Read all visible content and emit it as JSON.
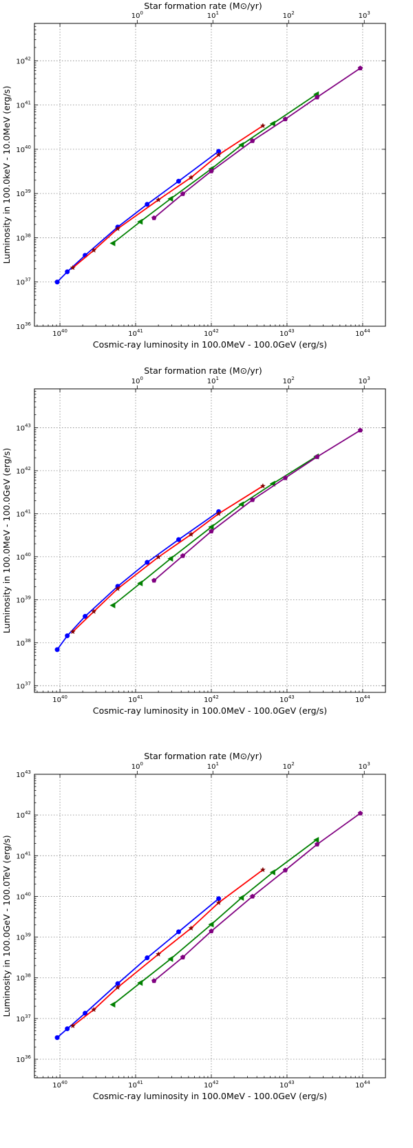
{
  "chart_data": [
    {
      "type": "line",
      "title": "",
      "xlabel": "Cosmic-ray luminosity in 100.0MeV - 100.0GeV (erg/s)",
      "ylabel": "Luminosity in 100.0keV -  10.0MeV (erg/s)",
      "top_xlabel": "Star formation rate (M⊙/yr)",
      "x_scale": "log",
      "y_scale": "log",
      "xlim": [
        4.6e+39,
        2e+44
      ],
      "ylim": [
        1e+36,
        7e+42
      ],
      "x_ticks": [
        "10^40",
        "10^41",
        "10^42",
        "10^43",
        "10^44"
      ],
      "y_ticks": [
        "10^36",
        "10^37",
        "10^38",
        "10^39",
        "10^40",
        "10^41",
        "10^42"
      ],
      "top_ticks": [
        "10^0",
        "10^1",
        "10^2",
        "10^3"
      ],
      "top_tick_positions": [
        1.05e+41,
        1.05e+42,
        1.05e+43,
        1.05e+44
      ],
      "grid": true,
      "series": [
        {
          "color": "#0000ff",
          "marker": "circle",
          "x": [
            9.2e+39,
            1.25e+40,
            2.15e+40,
            5.8e+40,
            1.42e+41,
            3.7e+41,
            1.25e+42
          ],
          "y": [
            1e+37,
            1.7e+37,
            4e+37,
            1.75e+38,
            5.7e+38,
            1.9e+39,
            9e+39
          ]
        },
        {
          "color": "#ff0000",
          "marker": "star",
          "x": [
            1.48e+40,
            2.8e+40,
            5.8e+40,
            2e+41,
            5.4e+41,
            1.25e+42,
            4.8e+42
          ],
          "y": [
            2.1e+37,
            5.2e+37,
            1.6e+38,
            7.2e+38,
            2.3e+39,
            7.5e+39,
            3.4e+40
          ]
        },
        {
          "color": "#008000",
          "marker": "triangle-left",
          "x": [
            5e+40,
            1.15e+41,
            2.9e+41,
            1e+42,
            2.5e+42,
            6.5e+42,
            2.45e+43
          ],
          "y": [
            7.5e+37,
            2.3e+38,
            7.6e+38,
            3.6e+39,
            1.25e+40,
            3.8e+40,
            1.75e+41
          ]
        },
        {
          "color": "#800080",
          "marker": "pentagon",
          "x": [
            1.75e+41,
            4.2e+41,
            1e+42,
            3.5e+42,
            9.5e+42,
            2.5e+43,
            9.3e+43
          ],
          "y": [
            2.8e+38,
            9.8e+38,
            3.2e+39,
            1.55e+40,
            4.8e+40,
            1.5e+41,
            6.8e+41
          ]
        }
      ]
    },
    {
      "type": "line",
      "title": "",
      "xlabel": "Cosmic-ray luminosity in 100.0MeV - 100.0GeV (erg/s)",
      "ylabel": "Luminosity in 100.0MeV - 100.0GeV (erg/s)",
      "top_xlabel": "Star formation rate (M⊙/yr)",
      "x_scale": "log",
      "y_scale": "log",
      "xlim": [
        4.6e+39,
        2e+44
      ],
      "ylim": [
        7e+36,
        8e+43
      ],
      "x_ticks": [
        "10^40",
        "10^41",
        "10^42",
        "10^43",
        "10^44"
      ],
      "y_ticks": [
        "10^37",
        "10^38",
        "10^39",
        "10^40",
        "10^41",
        "10^42",
        "10^43"
      ],
      "top_ticks": [
        "10^0",
        "10^1",
        "10^2",
        "10^3"
      ],
      "top_tick_positions": [
        1.05e+41,
        1.05e+42,
        1.05e+43,
        1.05e+44
      ],
      "grid": true,
      "series": [
        {
          "color": "#0000ff",
          "marker": "circle",
          "x": [
            9.2e+39,
            1.25e+40,
            2.15e+40,
            5.8e+40,
            1.42e+41,
            3.7e+41,
            1.25e+42
          ],
          "y": [
            6.9e+37,
            1.45e+38,
            4.1e+38,
            2.05e+39,
            7.4e+39,
            2.5e+40,
            1.12e+41
          ]
        },
        {
          "color": "#ff0000",
          "marker": "star",
          "x": [
            1.48e+40,
            2.8e+40,
            5.8e+40,
            2e+41,
            5.4e+41,
            1.25e+42,
            4.8e+42
          ],
          "y": [
            1.8e+38,
            5.3e+38,
            1.8e+39,
            9.8e+39,
            3.3e+40,
            1e+41,
            4.4e+41
          ]
        },
        {
          "color": "#008000",
          "marker": "triangle-left",
          "x": [
            5e+40,
            1.15e+41,
            2.9e+41,
            1e+42,
            2.5e+42,
            6.5e+42,
            2.45e+43
          ],
          "y": [
            7.4e+38,
            2.4e+39,
            9e+39,
            4.9e+40,
            1.65e+41,
            5e+41,
            2.15e+42
          ]
        },
        {
          "color": "#800080",
          "marker": "pentagon",
          "x": [
            1.75e+41,
            4.2e+41,
            1e+42,
            3.5e+42,
            9.5e+42,
            2.5e+43,
            9.3e+43
          ],
          "y": [
            2.8e+39,
            1.05e+40,
            3.9e+40,
            2.1e+41,
            6.8e+41,
            2.1e+42,
            8.7e+42
          ]
        }
      ]
    },
    {
      "type": "line",
      "title": "",
      "xlabel": "Cosmic-ray luminosity in 100.0MeV - 100.0GeV (erg/s)",
      "ylabel": "Luminosity in 100.0GeV - 100.0TeV (erg/s)",
      "top_xlabel": "Star formation rate (M⊙/yr)",
      "x_scale": "log",
      "y_scale": "log",
      "xlim": [
        4.6e+39,
        2e+44
      ],
      "ylim": [
        3.5e+35,
        1e+43
      ],
      "x_ticks": [
        "10^40",
        "10^41",
        "10^42",
        "10^43",
        "10^44"
      ],
      "y_ticks": [
        "10^36",
        "10^37",
        "10^38",
        "10^39",
        "10^40",
        "10^41",
        "10^42",
        "10^43"
      ],
      "top_ticks": [
        "10^0",
        "10^1",
        "10^2",
        "10^3"
      ],
      "top_tick_positions": [
        1.05e+41,
        1.05e+42,
        1.05e+43,
        1.05e+44
      ],
      "grid": true,
      "series": [
        {
          "color": "#0000ff",
          "marker": "circle",
          "x": [
            9.2e+39,
            1.25e+40,
            2.15e+40,
            5.8e+40,
            1.42e+41,
            3.7e+41,
            1.25e+42
          ],
          "y": [
            3.4e+36,
            5.6e+36,
            1.35e+37,
            7.2e+37,
            3.1e+38,
            1.35e+39,
            8.8e+39
          ]
        },
        {
          "color": "#ff0000",
          "marker": "star",
          "x": [
            1.48e+40,
            2.8e+40,
            5.8e+40,
            2e+41,
            5.4e+41,
            1.25e+42,
            4.8e+42
          ],
          "y": [
            6.6e+36,
            1.65e+37,
            5.8e+37,
            3.8e+38,
            1.65e+39,
            7e+39,
            4.5e+40
          ]
        },
        {
          "color": "#008000",
          "marker": "triangle-left",
          "x": [
            5e+40,
            1.15e+41,
            2.9e+41,
            1e+42,
            2.5e+42,
            6.5e+42,
            2.45e+43
          ],
          "y": [
            2.2e+37,
            7.5e+37,
            2.9e+38,
            2.05e+39,
            9.2e+39,
            3.9e+40,
            2.45e+41
          ]
        },
        {
          "color": "#800080",
          "marker": "pentagon",
          "x": [
            1.75e+41,
            4.2e+41,
            1e+42,
            3.5e+42,
            9.5e+42,
            2.5e+43,
            9.3e+43
          ],
          "y": [
            8.4e+37,
            3.2e+38,
            1.4e+39,
            1e+40,
            4.4e+40,
            1.9e+41,
            1.1e+42
          ]
        }
      ]
    }
  ]
}
